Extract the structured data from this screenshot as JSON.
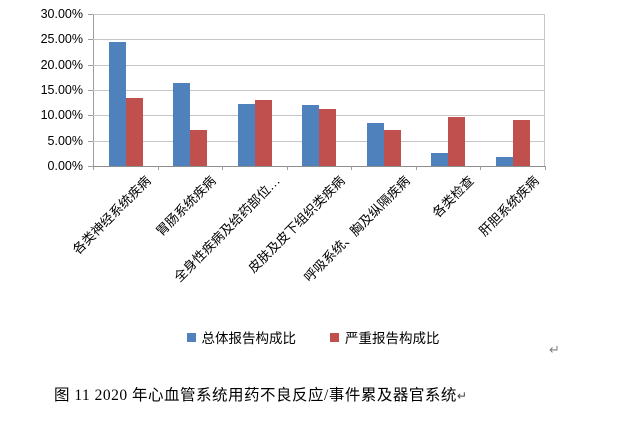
{
  "chart_data": {
    "type": "bar",
    "title": "",
    "categories": [
      "各类神经系统疾病",
      "胃肠系统疾病",
      "全身性疾病及给药部位…",
      "皮肤及皮下组织类疾病",
      "呼吸系统、胸及纵隔疾病",
      "各类检查",
      "肝胆系统疾病"
    ],
    "series": [
      {
        "name": "总体报告构成比",
        "color": "#4f81bd",
        "values": [
          24.4,
          16.4,
          12.3,
          12.0,
          8.4,
          2.5,
          1.8
        ]
      },
      {
        "name": "严重报告构成比",
        "color": "#c0504d",
        "values": [
          13.5,
          7.2,
          13.1,
          11.2,
          7.2,
          9.6,
          9.0
        ]
      }
    ],
    "xlabel": "",
    "ylabel": "",
    "ylim": [
      0,
      30
    ],
    "ytick_step": 5,
    "yticks": [
      "30.00%",
      "25.00%",
      "20.00%",
      "15.00%",
      "10.00%",
      "5.00%",
      "0.00%"
    ],
    "grid": "horizontal",
    "legend_position": "bottom",
    "bar_unit": "percent"
  },
  "colors": {
    "series_overall": "#4f81bd",
    "series_serious": "#c0504d",
    "gridline": "#c6c6c6",
    "axis": "#9c9c9c",
    "text": "#000000",
    "return_mark": "#7f7f7f"
  },
  "return_mark": "↵",
  "caption": {
    "text": "图 11  2020 年心血管系统用药不良反应/事件累及器官系统",
    "return_mark": "↵"
  }
}
